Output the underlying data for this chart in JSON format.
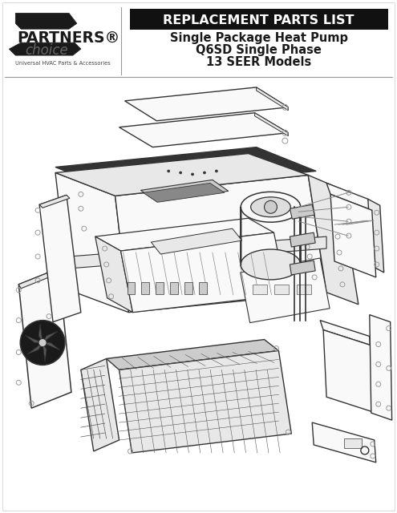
{
  "title_box_text": "REPLACEMENT PARTS LIST",
  "subtitle_line1": "Single Package Heat Pump",
  "subtitle_line2": "Q6SD Single Phase",
  "subtitle_line3": "13 SEER Models",
  "logo_text_partners": "PARTNERS",
  "logo_text_choice": "choice",
  "logo_subtext": "Universal HVAC Parts & Accessories",
  "bg_color": "#ffffff",
  "title_box_bg": "#111111",
  "title_box_fg": "#ffffff",
  "fig_width": 4.95,
  "fig_height": 6.4,
  "dpi": 100,
  "diagram_fill": "#f8f8f8",
  "diagram_fill2": "#f0f0f0",
  "diagram_edge": "#222222",
  "dark_fill": "#333333",
  "mid_fill": "#aaaaaa"
}
